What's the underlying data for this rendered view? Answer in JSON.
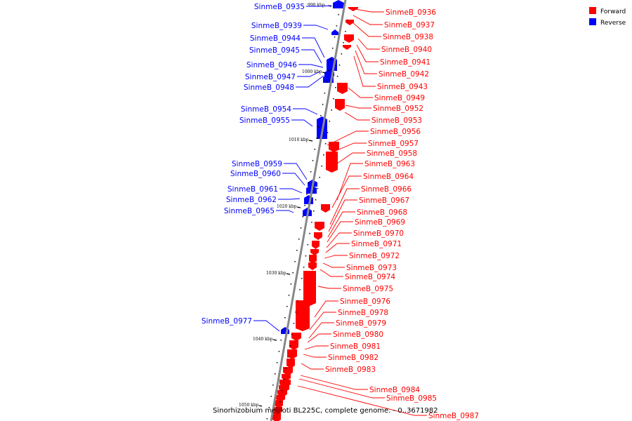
{
  "colors": {
    "forward": "#ff0000",
    "reverse": "#0000ff",
    "backbone": "#888888"
  },
  "legend": [
    {
      "label": "Forward",
      "color": "#ff0000"
    },
    {
      "label": "Reverse",
      "color": "#0000ff"
    }
  ],
  "caption": "Sinorhizobium meliloti BL225C, complete genome. - 0..3671982",
  "ticks": [
    "990 kbp",
    "1000 kbp",
    "1010 kbp",
    "1020 kbp",
    "1030 kbp",
    "1040 kbp",
    "1050 kbp"
  ],
  "forward_labels": [
    "SinmeB_0936",
    "SinmeB_0937",
    "SinmeB_0938",
    "SinmeB_0940",
    "SinmeB_0941",
    "SinmeB_0942",
    "SinmeB_0943",
    "SinmeB_0949",
    "SinmeB_0952",
    "SinmeB_0953",
    "SinmeB_0956",
    "SinmeB_0957",
    "SinmeB_0958",
    "SinmeB_0963",
    "SinmeB_0964",
    "SinmeB_0966",
    "SinmeB_0967",
    "SinmeB_0968",
    "SinmeB_0969",
    "SinmeB_0970",
    "SinmeB_0971",
    "SinmeB_0972",
    "SinmeB_0973",
    "SinmeB_0974",
    "SinmeB_0975",
    "SinmeB_0976",
    "SinmeB_0978",
    "SinmeB_0979",
    "SinmeB_0980",
    "SinmeB_0981",
    "SinmeB_0982",
    "SinmeB_0983",
    "SinmeB_0984",
    "SinmeB_0985",
    "SinmeB_0987"
  ],
  "reverse_labels": [
    "SinmeB_0935",
    "SinmeB_0939",
    "SinmeB_0944",
    "SinmeB_0945",
    "SinmeB_0946",
    "SinmeB_0947",
    "SinmeB_0948",
    "SinmeB_0954",
    "SinmeB_0955",
    "SinmeB_0959",
    "SinmeB_0960",
    "SinmeB_0961",
    "SinmeB_0962",
    "SinmeB_0965",
    "SinmeB_0977"
  ]
}
